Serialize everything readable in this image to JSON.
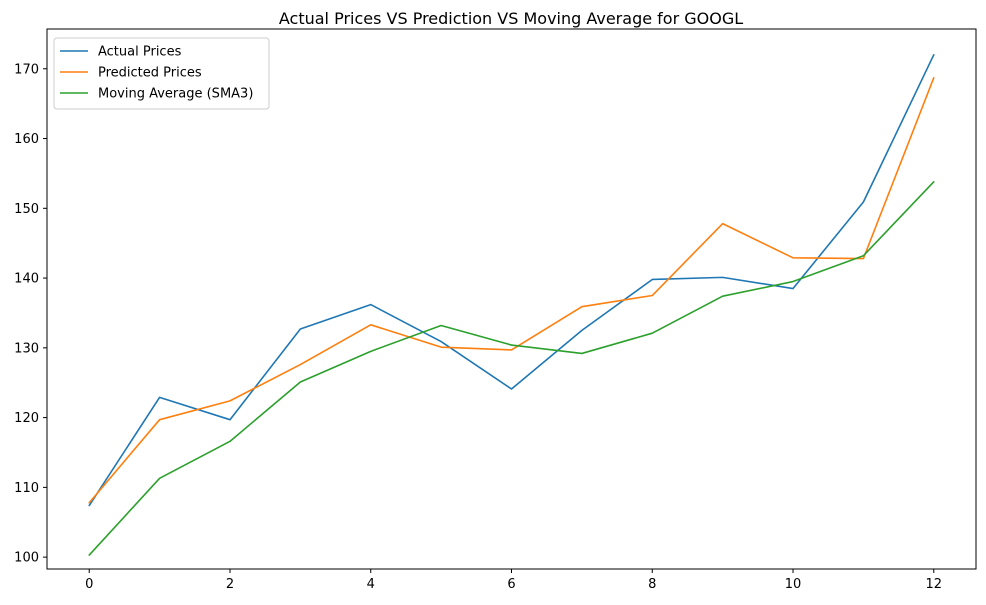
{
  "chart_data": {
    "type": "line",
    "title": "Actual Prices VS Prediction VS Moving Average for GOOGL",
    "xlabel": "",
    "ylabel": "",
    "xlim": [
      -0.6,
      12.6
    ],
    "ylim": [
      98.3,
      175.7
    ],
    "x": [
      0,
      1,
      2,
      3,
      4,
      5,
      6,
      7,
      8,
      9,
      10,
      11,
      12
    ],
    "x_ticks": [
      0,
      2,
      4,
      6,
      8,
      10,
      12
    ],
    "y_ticks": [
      100,
      110,
      120,
      130,
      140,
      150,
      160,
      170
    ],
    "grid": false,
    "legend_position": "top-left",
    "series": [
      {
        "name": "Actual Prices",
        "color": "#1f77b4",
        "values": [
          107.4,
          122.9,
          119.7,
          132.7,
          136.2,
          130.9,
          124.1,
          132.5,
          139.8,
          140.1,
          138.5,
          150.9,
          172.0
        ]
      },
      {
        "name": "Predicted Prices",
        "color": "#ff7f0e",
        "values": [
          107.8,
          119.7,
          122.4,
          127.6,
          133.3,
          130.1,
          129.7,
          135.9,
          137.5,
          147.8,
          142.9,
          142.8,
          168.7
        ]
      },
      {
        "name": "Moving Average (SMA3)",
        "color": "#2ca02c",
        "values": [
          100.3,
          111.3,
          116.6,
          125.1,
          129.5,
          133.2,
          130.4,
          129.2,
          132.1,
          137.4,
          139.5,
          143.2,
          153.8
        ]
      }
    ]
  }
}
